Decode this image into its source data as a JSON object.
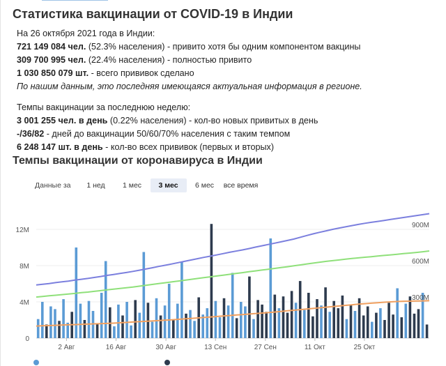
{
  "page": {
    "title": "Статистика вакцинации от COVID-19 в Индии"
  },
  "stats": {
    "date_line": "На 26 октября 2021 года в Индии:",
    "line1_bold": "721 149 084 чел.",
    "line1_rest": " (52.3% населения) - привито хотя бы одним компонентом вакцины",
    "line2_bold": "309 700 995 чел.",
    "line2_rest": " (22.4% населения) - полностью привито",
    "line3_bold": "1 030 850 079 шт.",
    "line3_rest": " - всего прививок сделано",
    "note": "По нашим данным, это последняя имеющаяся актуальная информация в регионе.",
    "week_heading": "Темпы вакцинации за последнюю неделю:",
    "week1_bold": "3 001 255 чел. в день",
    "week1_rest": " (0.22% населения) - кол-во новых привитых в день",
    "week2_bold": "-/36/82",
    "week2_rest": " - дней до вакцинации 50/60/70% населения с таким темпом",
    "week3_bold": "6 248 147 шт. в день",
    "week3_rest": " - кол-во всех прививок (первых и вторых)"
  },
  "chart_section": {
    "title": "Темпы вакцинации от коронавируса в Индии",
    "range_label": "Данные за",
    "range_buttons": [
      "1 нед",
      "1 мес",
      "3 мес",
      "6 мес",
      "все время"
    ],
    "active_range": "3 мес"
  },
  "colors": {
    "daily_bars": "#5b9bd5",
    "daily_dark_bars": "#2e3b4e",
    "total_line": "#7b7fde",
    "first_dose_line": "#8fe07a",
    "second_dose_line": "#f0a060"
  },
  "chart_data": {
    "type": "bar",
    "x_tick_labels": [
      "2 Авг",
      "16 Авг",
      "30 Авг",
      "13 Сен",
      "27 Сен",
      "11 Окт",
      "25 Окт"
    ],
    "left_axis_ticks": [
      "0",
      "4M",
      "8M",
      "12M"
    ],
    "right_axis_ticks": [
      "300M",
      "600M",
      "900M"
    ],
    "left_ylim": [
      0,
      14000000
    ],
    "right_ylim": [
      0,
      1050000000
    ],
    "date_range": [
      "2021-07-26",
      "2021-10-26"
    ],
    "series": [
      {
        "axis": "left",
        "kind": "bar",
        "values": [
          2100000,
          4000000,
          1500000,
          3500000,
          3200000,
          1900000,
          4300000,
          1700000,
          2900000,
          10000000,
          3800000,
          2000000,
          4100000,
          3000000,
          1600000,
          5000000,
          8500000,
          3400000,
          1300000,
          3700000,
          2500000,
          4000000,
          1400000,
          4200000,
          2800000,
          9500000,
          3900000,
          1800000,
          4400000,
          2500000,
          3600000,
          6000000,
          2000000,
          3800000,
          8400000,
          2700000,
          3100000,
          1900000,
          4500000,
          2600000,
          3300000,
          12600000,
          4100000,
          2300000,
          4400000,
          3600000,
          7200000,
          2200000,
          4000000,
          3500000,
          6800000,
          2100000,
          4200000,
          3700000,
          2900000,
          11000000,
          4800000,
          3300000,
          4600000,
          2800000,
          5200000,
          3900000,
          6300000,
          3100000,
          5000000,
          2400000,
          4300000,
          3600000,
          5600000,
          2900000,
          4100000,
          3300000,
          4700000,
          2100000,
          3700000,
          3000000,
          4400000,
          2500000,
          3500000,
          1800000,
          2800000,
          3300000,
          2000000,
          3900000,
          2600000,
          5500000,
          2300000,
          3800000,
          4600000,
          2700000,
          3200000,
          5000000,
          1500000
        ]
      },
      {
        "axis": "right",
        "kind": "line",
        "values": [
          440000000,
          446000000,
          452000000,
          459000000,
          466000000,
          472000000,
          480000000,
          487000000,
          494000000,
          502000000,
          510000000,
          519000000,
          527000000,
          535000000,
          543000000,
          552000000,
          562000000,
          572000000,
          582000000,
          593000000,
          603000000,
          613000000,
          624000000,
          635000000,
          646000000,
          657000000,
          668000000,
          678000000,
          688000000,
          699000000,
          710000000,
          720000000,
          730000000,
          741000000,
          753000000,
          764000000,
          775000000,
          786000000,
          797000000,
          808000000,
          820000000,
          835000000,
          849000000,
          863000000,
          876000000,
          888000000,
          900000000,
          911000000,
          921000000,
          931000000,
          941000000,
          950000000,
          958000000,
          966000000,
          974000000,
          982000000,
          990000000,
          998000000,
          1006000000,
          1014000000,
          1022000000,
          1030000000
        ]
      },
      {
        "axis": "right",
        "kind": "line",
        "values": [
          340000000,
          345000000,
          350000000,
          355000000,
          360000000,
          365000000,
          370000000,
          376000000,
          381000000,
          387000000,
          393000000,
          399000000,
          405000000,
          411000000,
          417000000,
          423000000,
          430000000,
          437000000,
          444000000,
          451000000,
          458000000,
          465000000,
          472000000,
          479000000,
          486000000,
          493000000,
          500000000,
          507000000,
          514000000,
          521000000,
          528000000,
          535000000,
          542000000,
          549000000,
          556000000,
          563000000,
          570000000,
          577000000,
          584000000,
          591000000,
          598000000,
          606000000,
          614000000,
          621000000,
          628000000,
          635000000,
          641000000,
          647000000,
          653000000,
          659000000,
          664000000,
          669000000,
          674000000,
          679000000,
          684000000,
          689000000,
          694000000,
          699000000,
          704000000,
          709000000,
          715000000,
          721000000
        ]
      },
      {
        "axis": "right",
        "kind": "line",
        "values": [
          100000000,
          102000000,
          104000000,
          106000000,
          108000000,
          110000000,
          112000000,
          114000000,
          116000000,
          118000000,
          120000000,
          122000000,
          124000000,
          127000000,
          130000000,
          133000000,
          136000000,
          139000000,
          142000000,
          145000000,
          148000000,
          151000000,
          155000000,
          159000000,
          163000000,
          167000000,
          171000000,
          175000000,
          179000000,
          183000000,
          187000000,
          191000000,
          195000000,
          199000000,
          203000000,
          207000000,
          211000000,
          216000000,
          221000000,
          226000000,
          231000000,
          236000000,
          241000000,
          246000000,
          251000000,
          256000000,
          261000000,
          266000000,
          271000000,
          276000000,
          281000000,
          285000000,
          289000000,
          293000000,
          297000000,
          300000000,
          303000000,
          305000000,
          306000000,
          307000000,
          308000000,
          310000000
        ]
      }
    ]
  }
}
